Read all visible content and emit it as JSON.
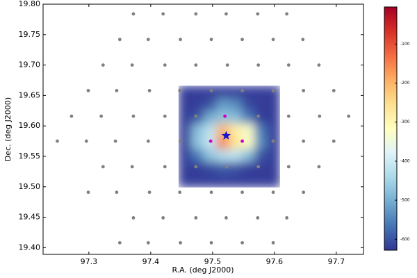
{
  "chart_data": {
    "type": "scatter",
    "xlabel": "R.A. (deg J2000)",
    "ylabel": "Dec. (deg J2000)",
    "xlim": [
      97.226,
      97.744
    ],
    "ylim": [
      19.389,
      19.8
    ],
    "xticks": [
      97.3,
      97.4,
      97.5,
      97.6,
      97.7
    ],
    "yticks": [
      {
        "value": 19.4,
        "label": "19.40"
      },
      19.45,
      {
        "value": 19.5,
        "label": "19.50"
      },
      19.55,
      {
        "value": 19.6,
        "label": "19.60"
      },
      19.65,
      {
        "value": 19.7,
        "label": "19.70"
      },
      19.75,
      {
        "value": 19.8,
        "label": "19.80"
      }
    ],
    "series": [
      {
        "color": "#808080",
        "marker": "circle",
        "x": [
          97.372,
          97.42,
          97.473,
          97.522,
          97.573,
          97.62,
          97.35,
          97.396,
          97.448,
          97.498,
          97.548,
          97.598,
          97.646,
          97.323,
          97.37,
          97.423,
          97.473,
          97.524,
          97.574,
          97.623,
          97.672,
          97.299,
          97.345,
          97.398,
          97.447,
          97.498,
          97.548,
          97.598,
          97.647,
          97.696,
          97.272,
          97.32,
          97.372,
          97.423,
          97.473,
          97.574,
          97.623,
          97.673,
          97.72,
          97.249,
          97.296,
          97.343,
          97.396,
          97.448,
          97.598,
          97.647,
          97.696,
          97.323,
          97.37,
          97.423,
          97.473,
          97.523,
          97.574,
          97.623,
          97.672,
          97.299,
          97.345,
          97.398,
          97.447,
          97.498,
          97.548,
          97.598,
          97.647,
          97.372,
          97.42,
          97.473,
          97.522,
          97.573,
          97.62,
          97.35,
          97.396,
          97.448,
          97.498,
          97.548,
          97.598
        ],
        "y": [
          19.784,
          19.784,
          19.784,
          19.784,
          19.784,
          19.784,
          19.742,
          19.742,
          19.742,
          19.742,
          19.742,
          19.742,
          19.742,
          19.7,
          19.7,
          19.7,
          19.7,
          19.7,
          19.7,
          19.7,
          19.7,
          19.658,
          19.658,
          19.658,
          19.658,
          19.658,
          19.658,
          19.658,
          19.658,
          19.658,
          19.616,
          19.616,
          19.616,
          19.616,
          19.616,
          19.616,
          19.616,
          19.616,
          19.616,
          19.575,
          19.575,
          19.575,
          19.575,
          19.575,
          19.575,
          19.575,
          19.575,
          19.533,
          19.533,
          19.533,
          19.533,
          19.533,
          19.533,
          19.533,
          19.533,
          19.491,
          19.491,
          19.491,
          19.491,
          19.491,
          19.491,
          19.491,
          19.491,
          19.449,
          19.449,
          19.449,
          19.449,
          19.449,
          19.449,
          19.408,
          19.408,
          19.408,
          19.408,
          19.408,
          19.408
        ]
      },
      {
        "color": "#cc00cc",
        "marker": "circle",
        "x": [
          97.52,
          97.497,
          97.548
        ],
        "y": [
          19.616,
          19.575,
          19.575
        ]
      },
      {
        "color": "#1515d0",
        "marker": "star",
        "x": [
          97.522
        ],
        "y": [
          19.584
        ]
      }
    ],
    "heatmap": {
      "xrange": [
        97.445,
        97.609
      ],
      "yrange": [
        19.499,
        19.666
      ],
      "values": [
        [
          -620,
          -620,
          -620,
          -620,
          -620,
          -620,
          -620,
          -620
        ],
        [
          -620,
          -620,
          -600,
          -520,
          -540,
          -610,
          -620,
          -620
        ],
        [
          -620,
          -600,
          -500,
          -470,
          -480,
          -560,
          -620,
          -620
        ],
        [
          -620,
          -480,
          -420,
          -200,
          -280,
          -330,
          -560,
          -620
        ],
        [
          -620,
          -470,
          -410,
          -150,
          -260,
          -320,
          -540,
          -620
        ],
        [
          -620,
          -560,
          -470,
          -430,
          -420,
          -480,
          -600,
          -620
        ],
        [
          -620,
          -620,
          -610,
          -590,
          -600,
          -620,
          -620,
          -620
        ],
        [
          -620,
          -620,
          -620,
          -620,
          -620,
          -620,
          -620,
          -620
        ]
      ]
    },
    "colorbar": {
      "clim": [
        -628,
        -5
      ],
      "ticks": [
        -600,
        -500,
        -400,
        -300,
        -200,
        -100
      ],
      "colormap": [
        "#313695",
        "#4575b4",
        "#74add1",
        "#abd9e9",
        "#e0f3f8",
        "#ffffbf",
        "#fee090",
        "#fdae61",
        "#f46d43",
        "#d73027",
        "#a50026"
      ]
    }
  }
}
